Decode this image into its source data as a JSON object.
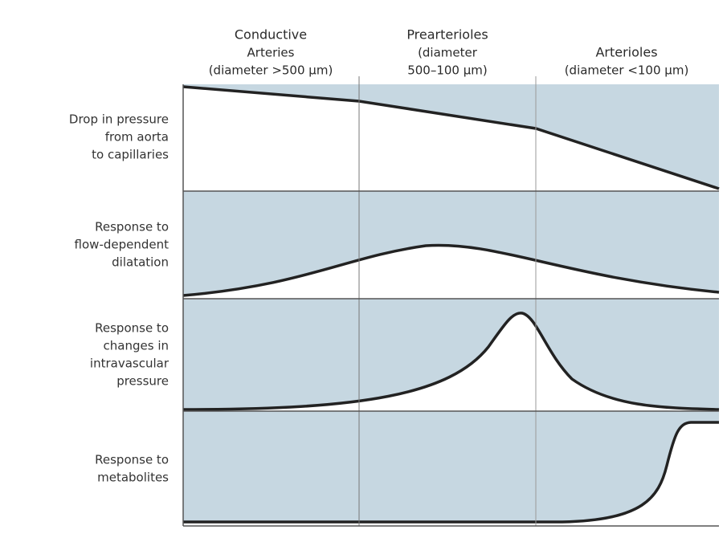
{
  "columns": [
    {
      "lines": [
        "Conductive",
        "Arteries",
        "(diameter >500 μm)"
      ]
    },
    {
      "lines": [
        "Prearterioles",
        "(diameter",
        "500–100 μm)"
      ]
    },
    {
      "lines": [
        "Arterioles",
        "(diameter <100 μm)"
      ]
    }
  ],
  "rows": [
    {
      "lines": [
        "Drop in pressure",
        "from aorta",
        "to capillaries"
      ]
    },
    {
      "lines": [
        "Response to",
        "flow-dependent",
        "dilatation"
      ]
    },
    {
      "lines": [
        "Response to",
        "changes in",
        "intravascular",
        "pressure"
      ]
    },
    {
      "lines": [
        "Response to",
        "metabolites"
      ]
    }
  ]
}
